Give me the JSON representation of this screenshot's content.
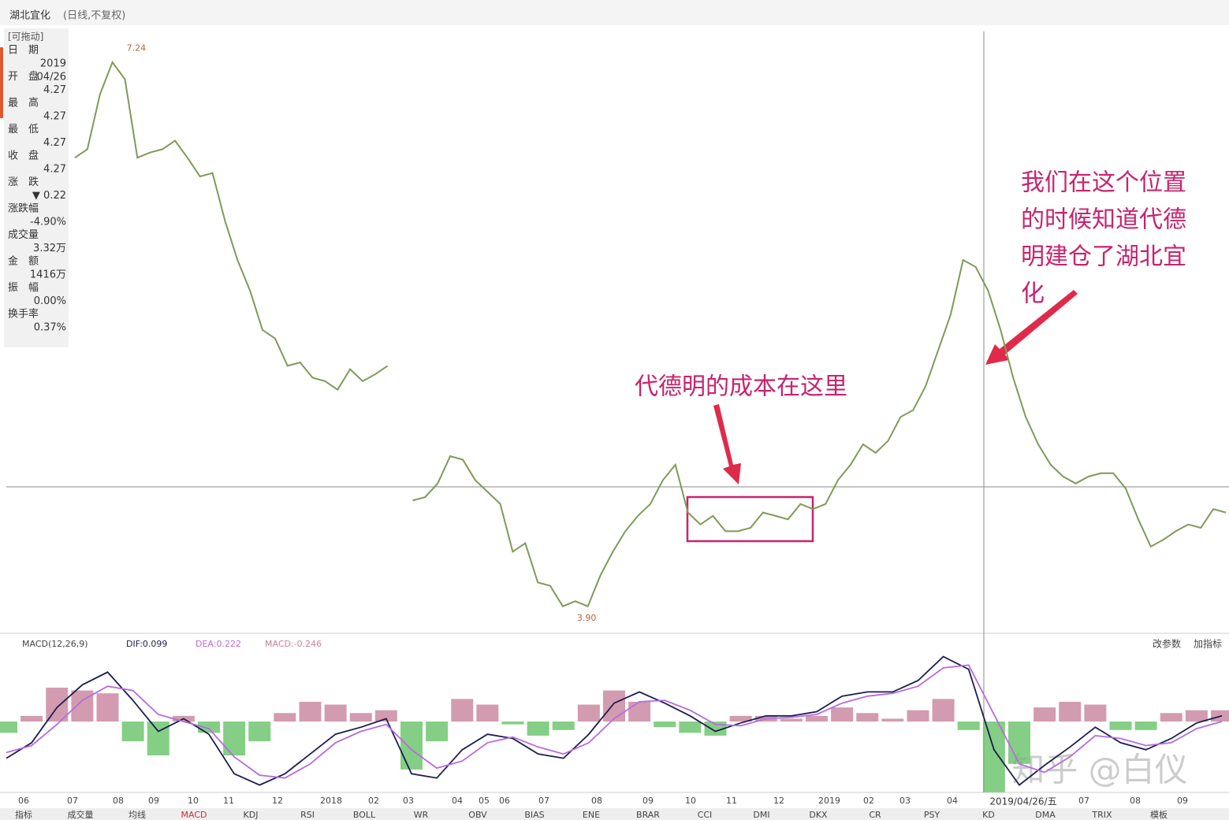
{
  "header": {
    "title": "湖北宜化",
    "mode": "(日线,不复权)"
  },
  "info_panel": {
    "heading": "[可拖动]",
    "items": [
      {
        "label": "日　期",
        "value": "2019",
        "value2": "04/26"
      },
      {
        "label": "开　盘",
        "value": "4.27"
      },
      {
        "label": "最　高",
        "value": "4.27"
      },
      {
        "label": "最　低",
        "value": "4.27"
      },
      {
        "label": "收　盘",
        "value": "4.27"
      },
      {
        "label": "涨　跌",
        "value": "▼ 0.22"
      },
      {
        "label": "涨跌幅",
        "value": "-4.90%"
      },
      {
        "label": "成交量",
        "value": "3.32万"
      },
      {
        "label": "金　额",
        "value": "1416万"
      },
      {
        "label": "振　幅",
        "value": "0.00%"
      },
      {
        "label": "换手率",
        "value": "0.37%"
      }
    ]
  },
  "annotations": {
    "cost": "代德明的成本在这里",
    "position": [
      "我们在这个位置",
      "的时候知道代德",
      "明建仓了湖北宜",
      "化"
    ],
    "watermark": "知乎 @白仪",
    "cursor_date": "2019/04/26/五"
  },
  "chart_data": [
    {
      "type": "line",
      "color": "#7f9a58",
      "ylim": [
        3.83,
        7.34
      ],
      "extremes": {
        "high": {
          "value": 7.24,
          "label": "7.24"
        },
        "low": {
          "value": 3.9,
          "label": "3.90"
        }
      },
      "values": [
        6.6,
        6.65,
        6.97,
        7.16,
        7.06,
        6.6,
        6.63,
        6.65,
        6.7,
        6.6,
        6.49,
        6.51,
        6.23,
        6.0,
        5.82,
        5.59,
        5.54,
        5.38,
        5.4,
        5.31,
        5.29,
        5.24,
        5.36,
        5.29,
        5.33,
        5.38,
        null,
        4.59,
        4.61,
        4.69,
        4.85,
        4.83,
        4.71,
        4.64,
        4.57,
        4.29,
        4.34,
        4.11,
        4.09,
        3.97,
        4.0,
        3.97,
        4.15,
        4.29,
        4.41,
        4.5,
        4.57,
        4.71,
        4.8,
        4.52,
        4.45,
        4.5,
        4.41,
        4.41,
        4.43,
        4.52,
        4.5,
        4.48,
        4.57,
        4.54,
        4.57,
        4.71,
        4.8,
        4.92,
        4.87,
        4.94,
        5.08,
        5.12,
        5.26,
        5.47,
        5.68,
        6.0,
        5.96,
        5.82,
        5.59,
        5.31,
        5.08,
        4.92,
        4.8,
        4.73,
        4.69,
        4.73,
        4.75,
        4.75,
        4.66,
        4.48,
        4.32,
        4.36,
        4.41,
        4.45,
        4.43,
        4.54,
        4.52
      ]
    },
    {
      "type": "macd",
      "title": "MACD(12,26,9)",
      "ylim": [
        -0.48,
        0.48
      ],
      "legend": [
        "DIF:0.099",
        "DEA:0.222",
        "MACD:-0.246"
      ],
      "buttons": [
        "改参数",
        "加指标"
      ],
      "series": [
        {
          "name": "DIF",
          "color": "#1d1d50",
          "values": [
            -0.26,
            -0.15,
            0.1,
            0.26,
            0.35,
            0.15,
            -0.07,
            0.02,
            -0.09,
            -0.37,
            -0.45,
            -0.37,
            -0.23,
            -0.09,
            -0.04,
            0.02,
            -0.37,
            -0.4,
            -0.2,
            -0.09,
            -0.12,
            -0.23,
            -0.26,
            -0.09,
            0.13,
            0.21,
            0.13,
            0.04,
            -0.07,
            -0.01,
            0.04,
            0.04,
            0.07,
            0.18,
            0.21,
            0.21,
            0.29,
            0.46,
            0.37,
            -0.2,
            -0.45,
            -0.31,
            -0.18,
            -0.04,
            -0.15,
            -0.2,
            -0.12,
            -0.01,
            0.04
          ]
        },
        {
          "name": "DEA",
          "color": "#b56be0",
          "values": [
            -0.22,
            -0.17,
            -0.02,
            0.15,
            0.25,
            0.22,
            0.05,
            0.0,
            -0.05,
            -0.25,
            -0.38,
            -0.4,
            -0.3,
            -0.15,
            -0.07,
            -0.02,
            -0.2,
            -0.33,
            -0.28,
            -0.15,
            -0.11,
            -0.18,
            -0.23,
            -0.15,
            0.02,
            0.14,
            0.15,
            0.08,
            -0.02,
            -0.03,
            0.02,
            0.03,
            0.05,
            0.13,
            0.18,
            0.2,
            0.25,
            0.38,
            0.4,
            0.05,
            -0.3,
            -0.36,
            -0.25,
            -0.1,
            -0.12,
            -0.17,
            -0.15,
            -0.05,
            0.0
          ]
        },
        {
          "name": "MACD",
          "color": "#c8829b",
          "neg_color": "#66c266",
          "values": [
            -0.08,
            0.04,
            0.24,
            0.22,
            0.2,
            -0.14,
            -0.24,
            0.04,
            -0.08,
            -0.24,
            -0.14,
            0.06,
            0.14,
            0.12,
            0.06,
            0.08,
            -0.34,
            -0.14,
            0.16,
            0.12,
            -0.02,
            -0.1,
            -0.06,
            0.12,
            0.22,
            0.14,
            -0.04,
            -0.08,
            -0.1,
            0.04,
            0.04,
            0.02,
            0.04,
            0.1,
            0.06,
            0.02,
            0.08,
            0.16,
            -0.06,
            -0.5,
            -0.3,
            0.1,
            0.14,
            0.12,
            -0.06,
            -0.06,
            0.06,
            0.08,
            0.08
          ]
        }
      ]
    }
  ],
  "time_axis": [
    "06",
    "07",
    "08",
    "09",
    "10",
    "11",
    "12",
    "2018",
    "02",
    "03",
    "04",
    "05",
    "06",
    "07",
    "08",
    "09",
    "10",
    "11",
    "12",
    "2019",
    "02",
    "03",
    "04",
    "07",
    "08",
    "09"
  ],
  "tabs": [
    "指标",
    "成交量",
    "均线",
    "MACD",
    "KDJ",
    "RSI",
    "BOLL",
    "WR",
    "OBV",
    "BIAS",
    "ENE",
    "BRAR",
    "CCI",
    "DMI",
    "DKX",
    "CR",
    "PSY",
    "KD",
    "DMA",
    "TRIX",
    "模板"
  ]
}
